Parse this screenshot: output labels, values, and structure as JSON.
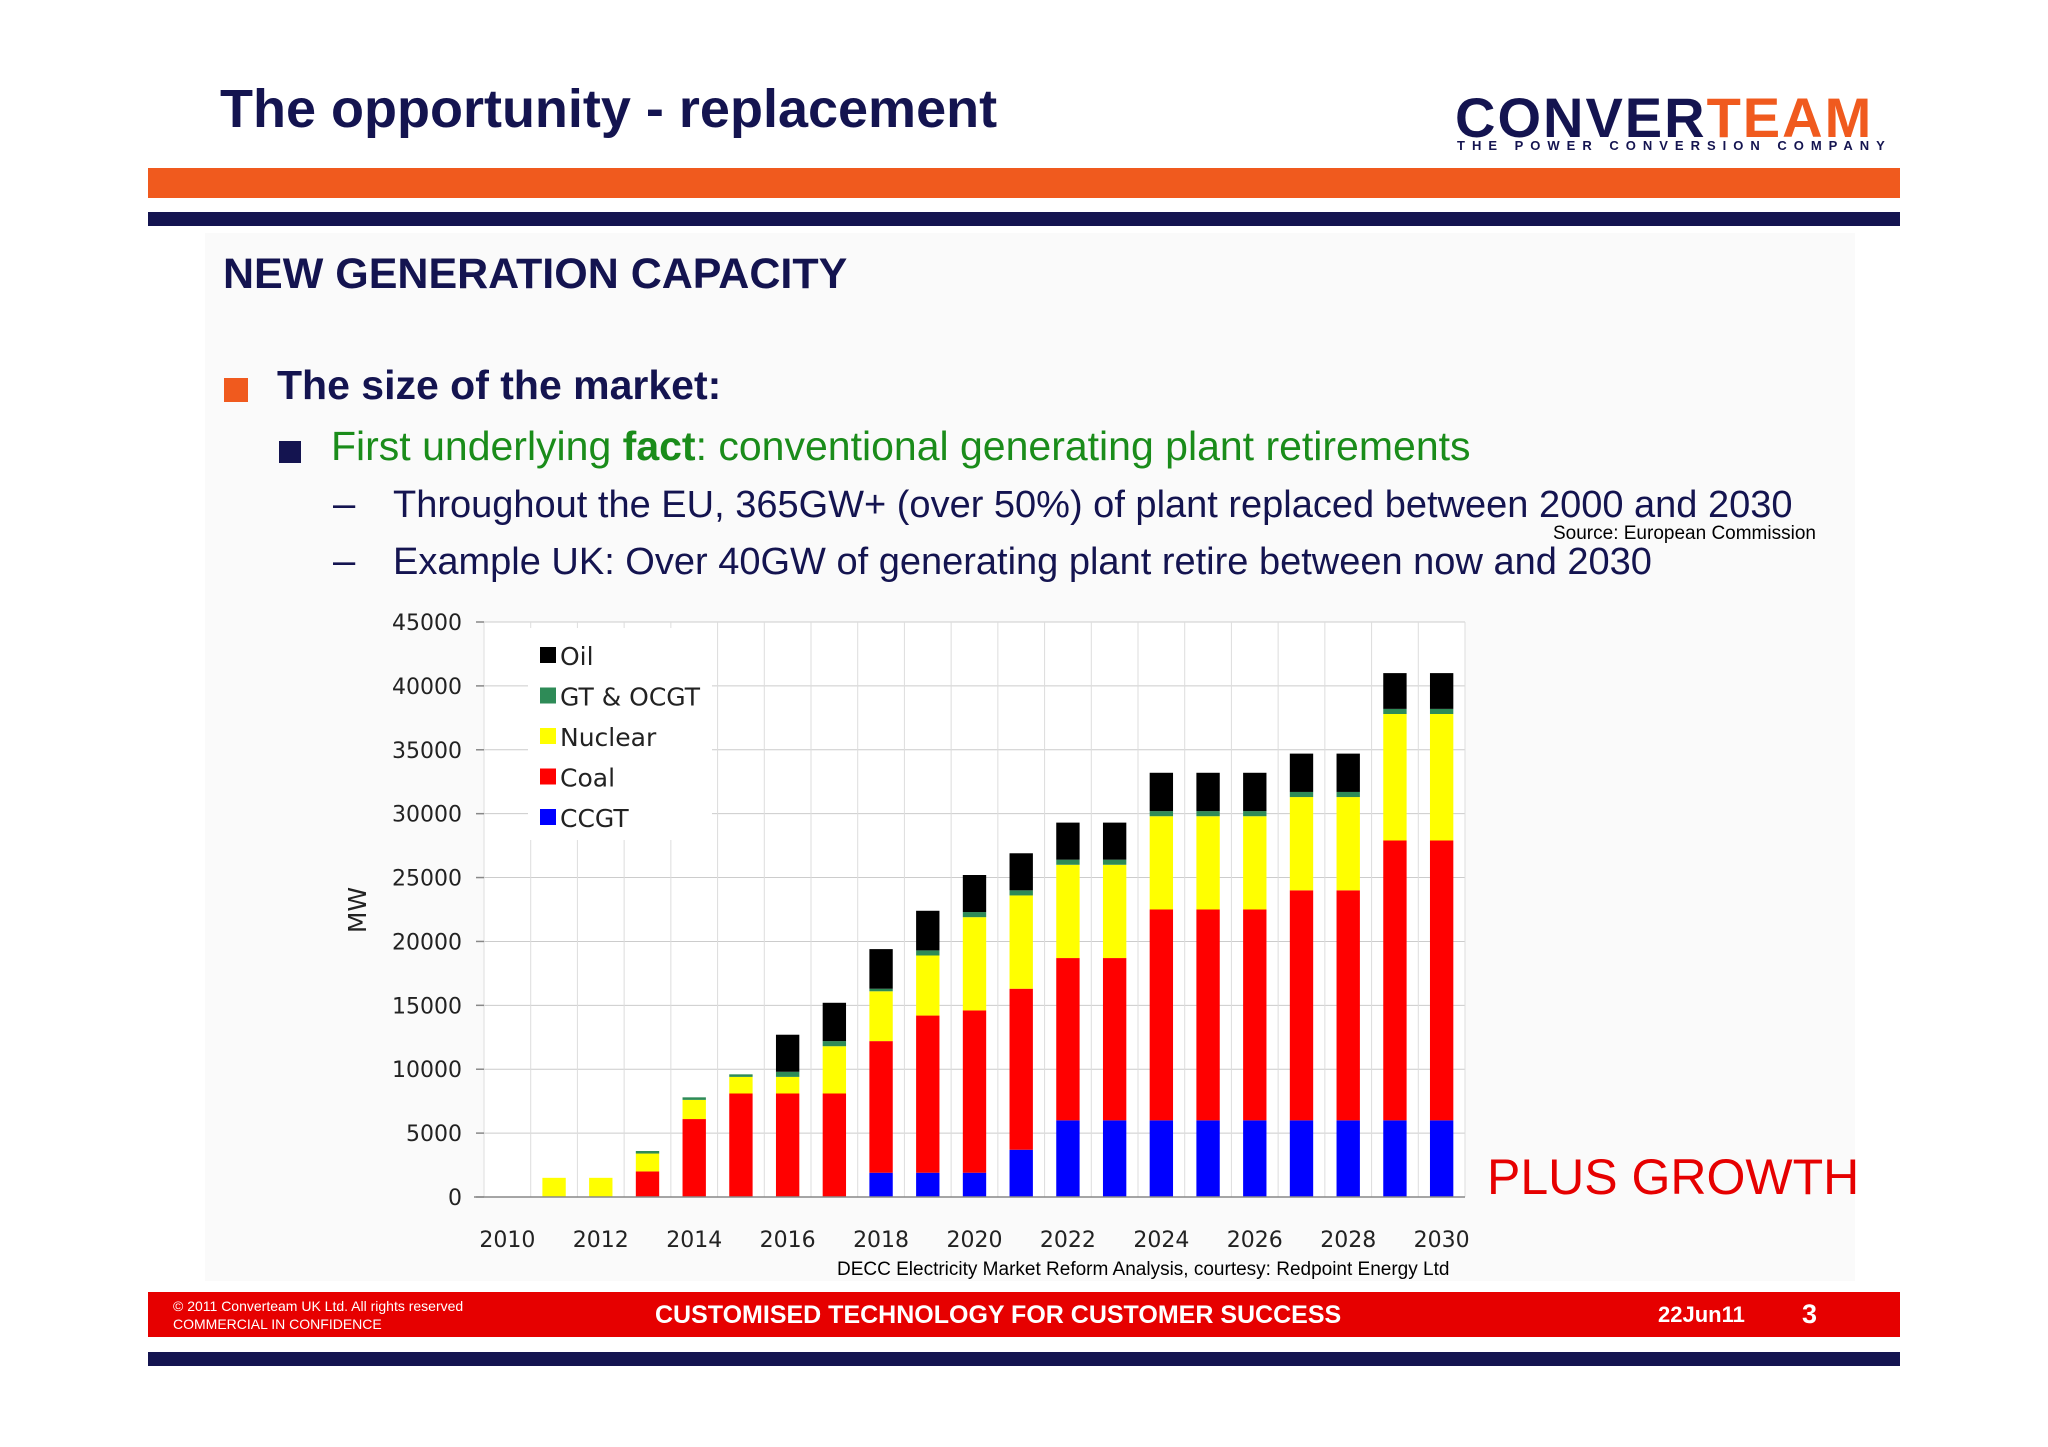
{
  "slide": {
    "title": "The opportunity - replacement",
    "logo": {
      "wordmark_dark": "CONVER",
      "wordmark_accent": "TEAM",
      "tagline": "THE POWER CONVERSION COMPANY"
    },
    "section_heading": "NEW GENERATION CAPACITY",
    "bullets": {
      "level1": "The size of the market:",
      "level2_prefix": "First underlying ",
      "level2_bold": "fact",
      "level2_suffix": ": conventional generating plant retirements",
      "dash_symbol": "–",
      "dash1": "Throughout the EU, 365GW+ (over 50%) of plant replaced between 2000 and 2030",
      "dash1_source": "Source: European Commission",
      "dash2": "Example UK: Over 40GW of generating plant retire between now and 2030"
    },
    "callout": "PLUS GROWTH",
    "chart_credit": "DECC Electricity Market Reform Analysis, courtesy: Redpoint Energy Ltd",
    "footer": {
      "copyright": "© 2011 Converteam UK Ltd. All rights reserved",
      "confidentiality": "COMMERCIAL IN CONFIDENCE",
      "slogan": "CUSTOMISED TECHNOLOGY FOR CUSTOMER SUCCESS",
      "date": "22Jun11",
      "page_number": "3"
    },
    "colors": {
      "navy": "#141450",
      "orange": "#f05a1e",
      "red": "#e60000",
      "green": "#1a8c1a"
    }
  },
  "chart_data": {
    "type": "bar",
    "stacked": true,
    "title": "",
    "xlabel": "",
    "ylabel": "MW",
    "ylim": [
      0,
      45000
    ],
    "y_ticks": [
      "0",
      "5000",
      "10000",
      "15000",
      "20000",
      "25000",
      "30000",
      "35000",
      "40000",
      "45000"
    ],
    "x_tick_labels": [
      "2010",
      "2012",
      "2014",
      "2016",
      "2018",
      "2020",
      "2022",
      "2024",
      "2026",
      "2028",
      "2030"
    ],
    "categories": [
      "2010",
      "2011",
      "2012",
      "2013",
      "2014",
      "2015",
      "2016",
      "2017",
      "2018",
      "2019",
      "2020",
      "2021",
      "2022",
      "2023",
      "2024",
      "2025",
      "2026",
      "2027",
      "2028",
      "2029",
      "2030"
    ],
    "grid": true,
    "legend_position": "top-left",
    "legend_order": [
      "Oil",
      "GT & OCGT",
      "Nuclear",
      "Coal",
      "CCGT"
    ],
    "series": [
      {
        "name": "CCGT",
        "color": "#0000ff",
        "values": [
          0,
          0,
          0,
          0,
          0,
          0,
          0,
          0,
          1900,
          1900,
          1900,
          3700,
          6000,
          6000,
          6000,
          6000,
          6000,
          6000,
          6000,
          6000,
          6000
        ]
      },
      {
        "name": "Coal",
        "color": "#ff0000",
        "values": [
          0,
          0,
          0,
          2000,
          6100,
          8100,
          8100,
          8100,
          10300,
          12300,
          12700,
          12600,
          12700,
          12700,
          16500,
          16500,
          16500,
          18000,
          18000,
          21900,
          21900
        ]
      },
      {
        "name": "Nuclear",
        "color": "#ffff00",
        "values": [
          0,
          1500,
          1500,
          1400,
          1500,
          1300,
          1300,
          3700,
          3900,
          4700,
          7300,
          7300,
          7300,
          7300,
          7300,
          7300,
          7300,
          7300,
          7300,
          9900,
          9900
        ]
      },
      {
        "name": "GT & OCGT",
        "color": "#2e8b57",
        "values": [
          0,
          0,
          0,
          200,
          200,
          200,
          400,
          400,
          200,
          400,
          400,
          400,
          400,
          400,
          400,
          400,
          400,
          400,
          400,
          400,
          400
        ]
      },
      {
        "name": "Oil",
        "color": "#000000",
        "values": [
          0,
          0,
          0,
          0,
          0,
          0,
          2900,
          3000,
          3100,
          3100,
          2900,
          2900,
          2900,
          2900,
          3000,
          3000,
          3000,
          3000,
          3000,
          2800,
          2800
        ]
      }
    ]
  }
}
